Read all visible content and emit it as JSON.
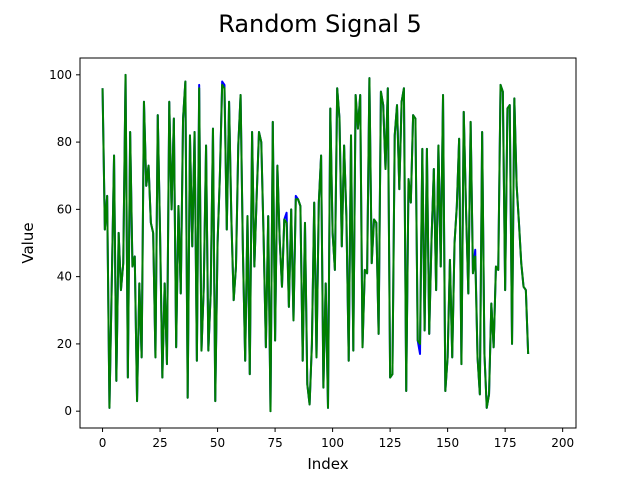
{
  "chart_data": {
    "type": "line",
    "title": "Random Signal 5",
    "xlabel": "Index",
    "ylabel": "Value",
    "xlim": [
      -9.8,
      205.8
    ],
    "ylim": [
      -5,
      105
    ],
    "xticks": [
      0,
      25,
      50,
      75,
      100,
      125,
      150,
      175,
      200
    ],
    "yticks": [
      0,
      20,
      40,
      60,
      80,
      100
    ],
    "grid": false,
    "series": [
      {
        "color": "#0000ff",
        "values": [
          96,
          54,
          64,
          1,
          38,
          76,
          9,
          53,
          36,
          44,
          100,
          10,
          83,
          43,
          46,
          3,
          38,
          16,
          92,
          67,
          73,
          56,
          53,
          16,
          88,
          53,
          10,
          38,
          14,
          92,
          60,
          87,
          19,
          61,
          35,
          87,
          98,
          4,
          82,
          49,
          83,
          15,
          97,
          18,
          37,
          79,
          18,
          35,
          84,
          3,
          50,
          70,
          98,
          97,
          54,
          92,
          57,
          33,
          43,
          79,
          94,
          48,
          15,
          58,
          11,
          83,
          43,
          64,
          83,
          80,
          52,
          19,
          58,
          0,
          86,
          21,
          73,
          51,
          37,
          57,
          59,
          31,
          60,
          27,
          64,
          63,
          61,
          15,
          56,
          8,
          2,
          20,
          62,
          16,
          62,
          76,
          7,
          38,
          1,
          90,
          53,
          42,
          96,
          87,
          49,
          79,
          58,
          15,
          82,
          18,
          94,
          84,
          94,
          19,
          42,
          41,
          99,
          44,
          57,
          56,
          23,
          95,
          91,
          72,
          96,
          10,
          11,
          82,
          91,
          66,
          92,
          96,
          6,
          69,
          62,
          88,
          87,
          21,
          17,
          78,
          24,
          78,
          23,
          51,
          72,
          36,
          79,
          43,
          94,
          6,
          16,
          45,
          16,
          50,
          61,
          81,
          14,
          89,
          60,
          35,
          86,
          41,
          48,
          16,
          5,
          83,
          17,
          1,
          5,
          32,
          19,
          43,
          42,
          97,
          95,
          36,
          90,
          91,
          20,
          93,
          67,
          56,
          44,
          37,
          36,
          17
        ]
      },
      {
        "color": "#007f00",
        "values": [
          96,
          54,
          64,
          1,
          38,
          76,
          9,
          53,
          36,
          44,
          100,
          10,
          83,
          43,
          46,
          3,
          38,
          16,
          92,
          67,
          73,
          56,
          53,
          16,
          88,
          53,
          10,
          38,
          14,
          92,
          60,
          87,
          19,
          61,
          35,
          87,
          98,
          4,
          82,
          49,
          83,
          15,
          96,
          18,
          37,
          79,
          18,
          35,
          84,
          3,
          50,
          70,
          97,
          96,
          54,
          92,
          57,
          33,
          43,
          79,
          94,
          48,
          15,
          58,
          11,
          83,
          43,
          64,
          83,
          80,
          52,
          19,
          58,
          0,
          86,
          21,
          73,
          51,
          37,
          57,
          56,
          31,
          60,
          27,
          63,
          63,
          61,
          15,
          56,
          8,
          2,
          20,
          62,
          16,
          62,
          76,
          7,
          38,
          1,
          90,
          53,
          42,
          96,
          87,
          49,
          79,
          58,
          15,
          82,
          18,
          94,
          84,
          94,
          19,
          42,
          41,
          99,
          44,
          57,
          56,
          23,
          95,
          91,
          72,
          96,
          10,
          11,
          82,
          91,
          66,
          92,
          96,
          6,
          69,
          62,
          88,
          87,
          21,
          20,
          78,
          24,
          78,
          23,
          51,
          72,
          36,
          79,
          43,
          94,
          6,
          16,
          45,
          16,
          50,
          61,
          81,
          14,
          89,
          60,
          35,
          86,
          41,
          46,
          16,
          5,
          83,
          17,
          1,
          5,
          32,
          19,
          43,
          42,
          97,
          95,
          36,
          90,
          91,
          20,
          93,
          67,
          56,
          44,
          37,
          36,
          17
        ]
      }
    ]
  }
}
